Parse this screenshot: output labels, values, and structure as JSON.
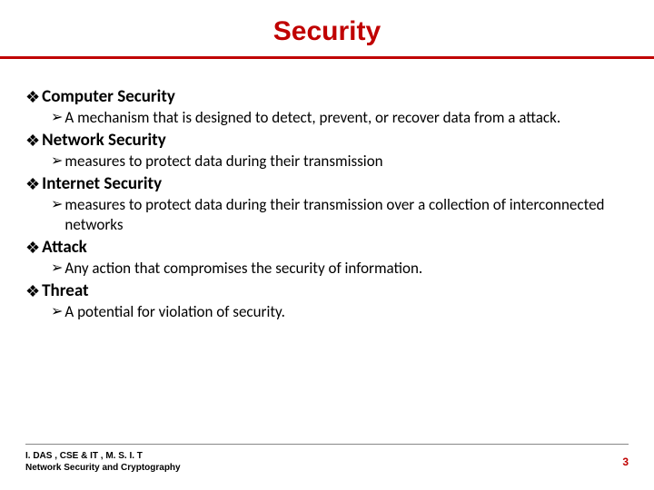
{
  "title": "Security",
  "title_color": "#c00000",
  "title_fontsize": 30,
  "rule_color": "#c00000",
  "background_color": "#ffffff",
  "text_color": "#000000",
  "term_fontsize": 19,
  "def_fontsize": 17,
  "term_bullet": "❖",
  "def_bullet": "➢",
  "items": [
    {
      "term": "Computer Security",
      "def": "A mechanism that is designed to detect, prevent, or recover data from a attack."
    },
    {
      "term": "Network Security",
      "def": "measures to protect data during their transmission"
    },
    {
      "term": "Internet Security",
      "def": "measures to protect data during their transmission over a collection of interconnected networks"
    },
    {
      "term": "Attack",
      "def": "Any action that compromises the security of information."
    },
    {
      "term": "Threat",
      "def": "A potential for violation of security."
    }
  ],
  "footer": {
    "line1": "I. DAS , CSE & IT , M. S. I. T",
    "line2": "Network Security and Cryptography",
    "page": "3",
    "page_color": "#c00000",
    "fontsize": 10
  }
}
